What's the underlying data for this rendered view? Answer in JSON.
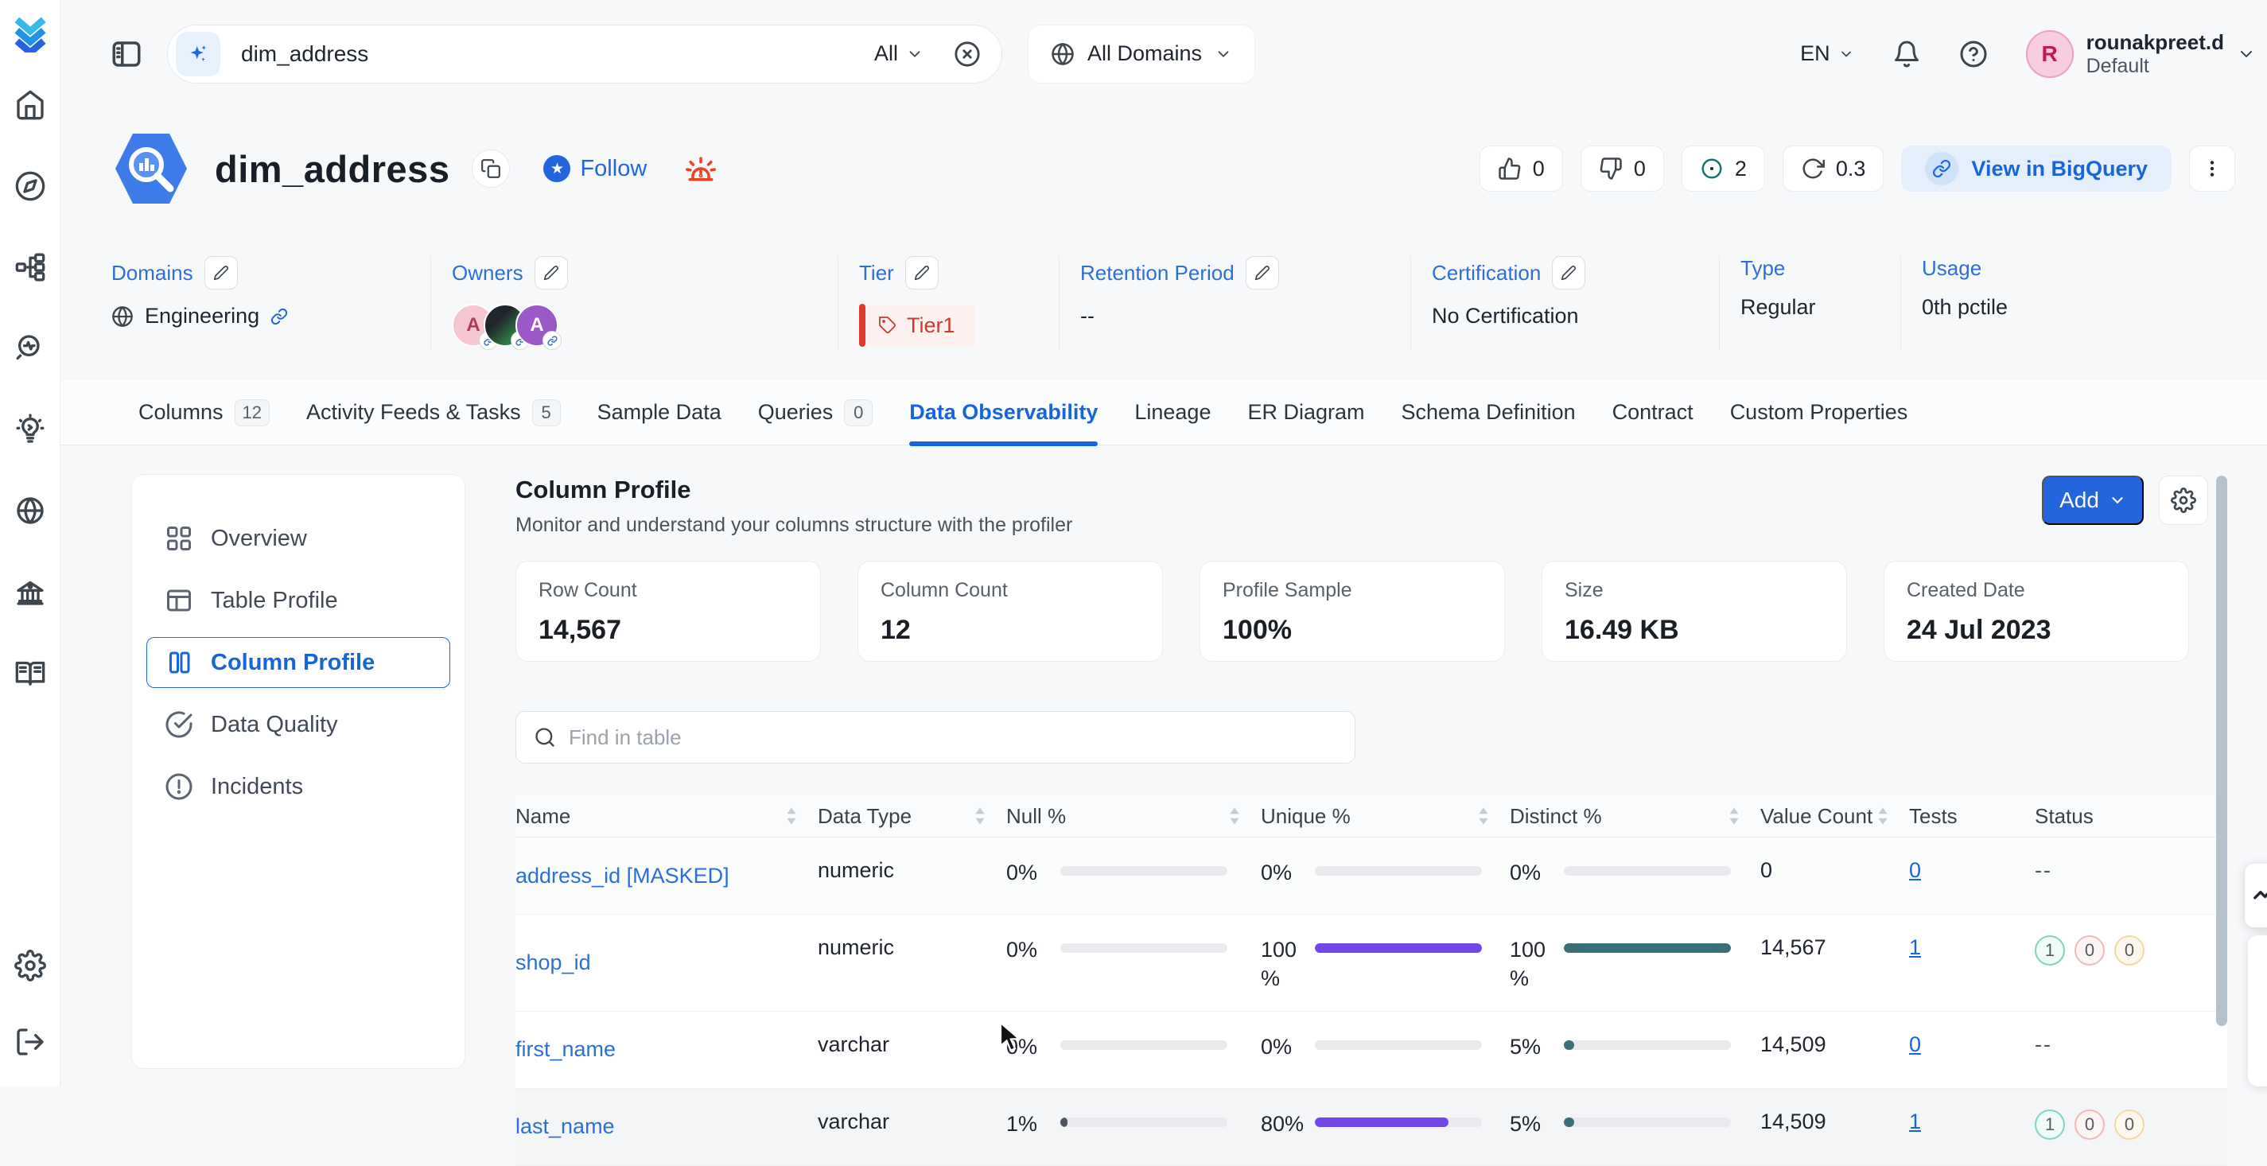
{
  "colors": {
    "primary": "#2365dd",
    "tier_red": "#ca3a2e",
    "unique_bar": "#7147e8",
    "distinct_bar": "#3b6f78",
    "null_bar": "#4a5560",
    "track": "#e9eaed",
    "badge_success_border": "#7fd4c2",
    "badge_failed_border": "#f2b8bc",
    "badge_aborted_border": "#f3d9a0"
  },
  "topbar": {
    "search_value": "dim_address",
    "search_scope": "All",
    "domains_label": "All Domains",
    "language": "EN",
    "user_initial": "R",
    "user_name": "rounakpreet.d",
    "user_team": "Default"
  },
  "sidebar_icons": [
    "app-logo",
    "home-icon",
    "explore-icon",
    "data-assets-icon",
    "observability-icon",
    "insights-icon",
    "domains-icon",
    "govern-icon",
    "glossary-icon",
    "settings-icon",
    "logout-icon"
  ],
  "entity": {
    "title": "dim_address",
    "follow_label": "Follow",
    "upvote_count": "0",
    "downvote_count": "0",
    "watch_count": "2",
    "version": "0.3",
    "service_button": "View in BigQuery"
  },
  "metadata": {
    "domains": {
      "label": "Domains",
      "value": "Engineering"
    },
    "owners": {
      "label": "Owners",
      "avatars": [
        "A",
        "",
        "A"
      ]
    },
    "tier": {
      "label": "Tier",
      "value": "Tier1"
    },
    "retention": {
      "label": "Retention Period",
      "value": "--"
    },
    "certification": {
      "label": "Certification",
      "value": "No Certification"
    },
    "type": {
      "label": "Type",
      "value": "Regular"
    },
    "usage": {
      "label": "Usage",
      "value": "0th pctile"
    }
  },
  "tabs": [
    {
      "label": "Columns",
      "count": "12"
    },
    {
      "label": "Activity Feeds & Tasks",
      "count": "5"
    },
    {
      "label": "Sample Data"
    },
    {
      "label": "Queries",
      "count": "0"
    },
    {
      "label": "Data Observability",
      "active": true
    },
    {
      "label": "Lineage"
    },
    {
      "label": "ER Diagram"
    },
    {
      "label": "Schema Definition"
    },
    {
      "label": "Contract"
    },
    {
      "label": "Custom Properties"
    }
  ],
  "subnav": [
    {
      "label": "Overview"
    },
    {
      "label": "Table Profile"
    },
    {
      "label": "Column Profile",
      "active": true
    },
    {
      "label": "Data Quality"
    },
    {
      "label": "Incidents"
    }
  ],
  "profile": {
    "title": "Column Profile",
    "subtitle": "Monitor and understand your columns structure with the profiler",
    "add_label": "Add",
    "stats": [
      {
        "label": "Row Count",
        "value": "14,567"
      },
      {
        "label": "Column Count",
        "value": "12"
      },
      {
        "label": "Profile Sample",
        "value": "100%"
      },
      {
        "label": "Size",
        "value": "16.49 KB"
      },
      {
        "label": "Created Date",
        "value": "24 Jul 2023"
      }
    ],
    "search_placeholder": "Find in table",
    "table": {
      "columns": [
        {
          "label": "Name",
          "sortable": true
        },
        {
          "label": "Data Type",
          "sortable": true
        },
        {
          "label": "Null %",
          "sortable": true
        },
        {
          "label": "Unique %",
          "sortable": true
        },
        {
          "label": "Distinct %",
          "sortable": true
        },
        {
          "label": "Value Count",
          "sortable": true
        },
        {
          "label": "Tests",
          "sortable": false
        },
        {
          "label": "Status",
          "sortable": false
        }
      ],
      "rows": [
        {
          "name": "address_id [MASKED]",
          "data_type": "numeric",
          "null_pct": "0%",
          "null_fill": 0,
          "unique_pct": "0%",
          "unique_fill": 0,
          "distinct_pct": "0%",
          "distinct_fill": 0,
          "value_count": "0",
          "tests": "0",
          "status_text": "--"
        },
        {
          "name": "shop_id",
          "data_type": "numeric",
          "null_pct": "0%",
          "null_fill": 0,
          "unique_pct": "100 %",
          "unique_fill": 100,
          "distinct_pct": "100 %",
          "distinct_fill": 100,
          "value_count": "14,567",
          "tests": "1",
          "status_badges": {
            "success": "1",
            "failed": "0",
            "aborted": "0"
          }
        },
        {
          "name": "first_name",
          "data_type": "varchar",
          "null_pct": "0%",
          "null_fill": 0,
          "unique_pct": "0%",
          "unique_fill": 0,
          "distinct_pct": "5%",
          "distinct_fill": 5,
          "value_count": "14,509",
          "tests": "0",
          "status_text": "--"
        },
        {
          "name": "last_name",
          "data_type": "varchar",
          "null_pct": "1%",
          "null_fill": 1,
          "unique_pct": "80%",
          "unique_fill": 80,
          "distinct_pct": "5%",
          "distinct_fill": 5,
          "value_count": "14,509",
          "tests": "1",
          "status_badges": {
            "success": "1",
            "failed": "0",
            "aborted": "0"
          }
        }
      ]
    }
  }
}
